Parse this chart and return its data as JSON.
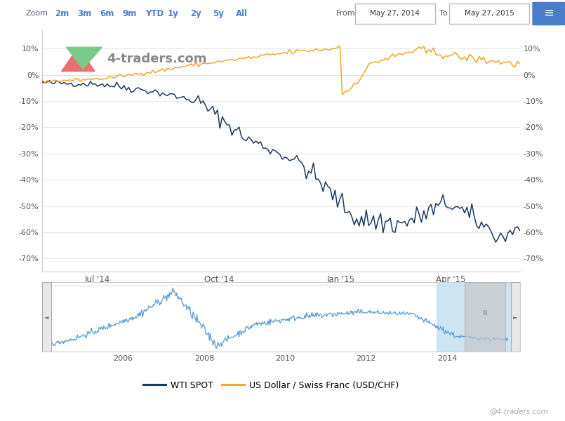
{
  "from_date": "May 27, 2014",
  "to_date": "May 27, 2015",
  "bg_color": "#ffffff",
  "plot_bg_color": "#ffffff",
  "grid_color": "#e8e8e8",
  "border_color": "#cccccc",
  "wti_color": "#1e3a5f",
  "usdchf_color": "#f5a623",
  "yticks_left": [
    10,
    0,
    -10,
    -20,
    -30,
    -40,
    -50,
    -60,
    -70
  ],
  "ylim": [
    -75,
    17
  ],
  "xlabel_dates": [
    "Jul '14",
    "Oct '14",
    "Jan '15",
    "Apr '15"
  ],
  "x_tick_positions": [
    0.115,
    0.37,
    0.625,
    0.855
  ],
  "legend_wti": "WTI SPOT",
  "legend_usdchf": "US Dollar / Swiss Franc (USD/CHF)",
  "watermark": "@4-traders.com",
  "toolbar_bg": "#f7f7f7",
  "zoom_label_color": "#444444",
  "zoom_link_color": "#4a7ecb",
  "minimap_bg": "#f2f2f2",
  "minimap_line_color": "#5b9bd5",
  "minimap_highlight_color": "#cce5f5",
  "minimap_years": [
    "2006",
    "2008",
    "2010",
    "2012",
    "2014"
  ],
  "zoom_links": [
    "2m",
    "3m",
    "6m",
    "9m",
    "YTD",
    "1y",
    "2y",
    "5y",
    "All"
  ]
}
